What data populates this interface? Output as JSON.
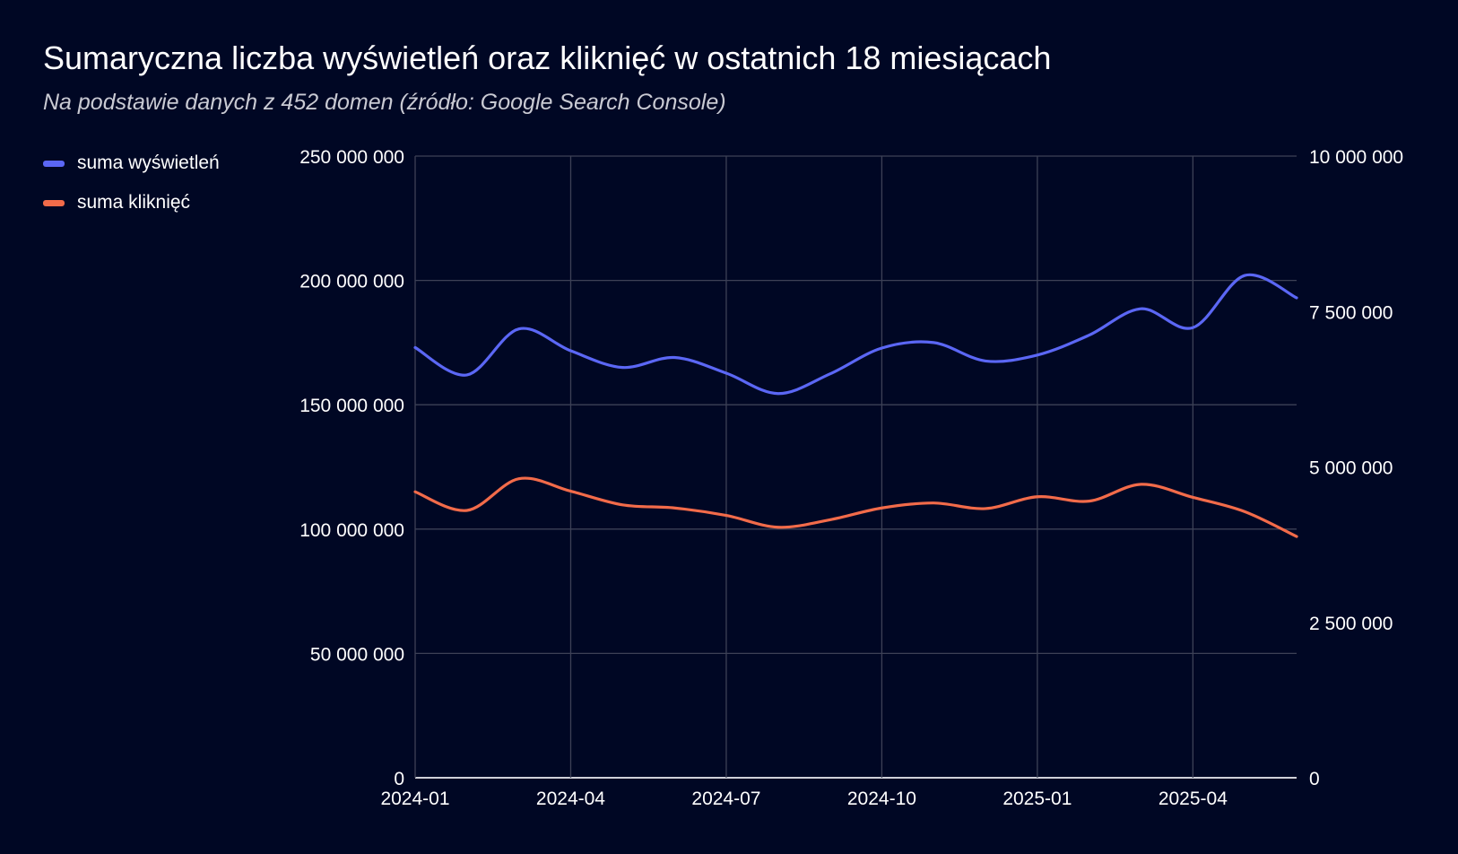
{
  "chart_data": {
    "type": "line",
    "title": "Sumaryczna liczba wyświetleń oraz kliknięć w ostatnich 18 miesiącach",
    "subtitle": "Na podstawie danych z 452 domen (źródło: Google Search Console)",
    "x": [
      "2024-01",
      "2024-02",
      "2024-03",
      "2024-04",
      "2024-05",
      "2024-06",
      "2024-07",
      "2024-08",
      "2024-09",
      "2024-10",
      "2024-11",
      "2024-12",
      "2025-01",
      "2025-02",
      "2025-03",
      "2025-04",
      "2025-05",
      "2025-06"
    ],
    "x_tick_labels": [
      "2024-01",
      "2024-04",
      "2024-07",
      "2024-10",
      "2025-01",
      "2025-04"
    ],
    "y_left": {
      "range": [
        0,
        250000000
      ],
      "tick_labels": [
        "0",
        "50 000 000",
        "100 000 000",
        "150 000 000",
        "200 000 000",
        "250 000 000"
      ]
    },
    "y_right": {
      "range": [
        0,
        10000000
      ],
      "tick_labels": [
        "0",
        "2 500 000",
        "5 000 000",
        "7 500 000",
        "10 000 000"
      ]
    },
    "grid": true,
    "legend_position": "top-left",
    "series": [
      {
        "name": "suma wyświetleń",
        "axis": "left",
        "color": "#5b67f5",
        "values": [
          173000000,
          162000000,
          180500000,
          171700000,
          165000000,
          169000000,
          162700000,
          154500000,
          162400000,
          172800000,
          175000000,
          167600000,
          170000000,
          178000000,
          188600000,
          181000000,
          202000000,
          193000000
        ]
      },
      {
        "name": "suma kliknięć",
        "axis": "right",
        "color": "#f26b4a",
        "values": [
          4600000,
          4300000,
          4810000,
          4610000,
          4390000,
          4340000,
          4220000,
          4030000,
          4150000,
          4340000,
          4420000,
          4330000,
          4520000,
          4450000,
          4720000,
          4510000,
          4280000,
          3880000
        ]
      }
    ]
  }
}
